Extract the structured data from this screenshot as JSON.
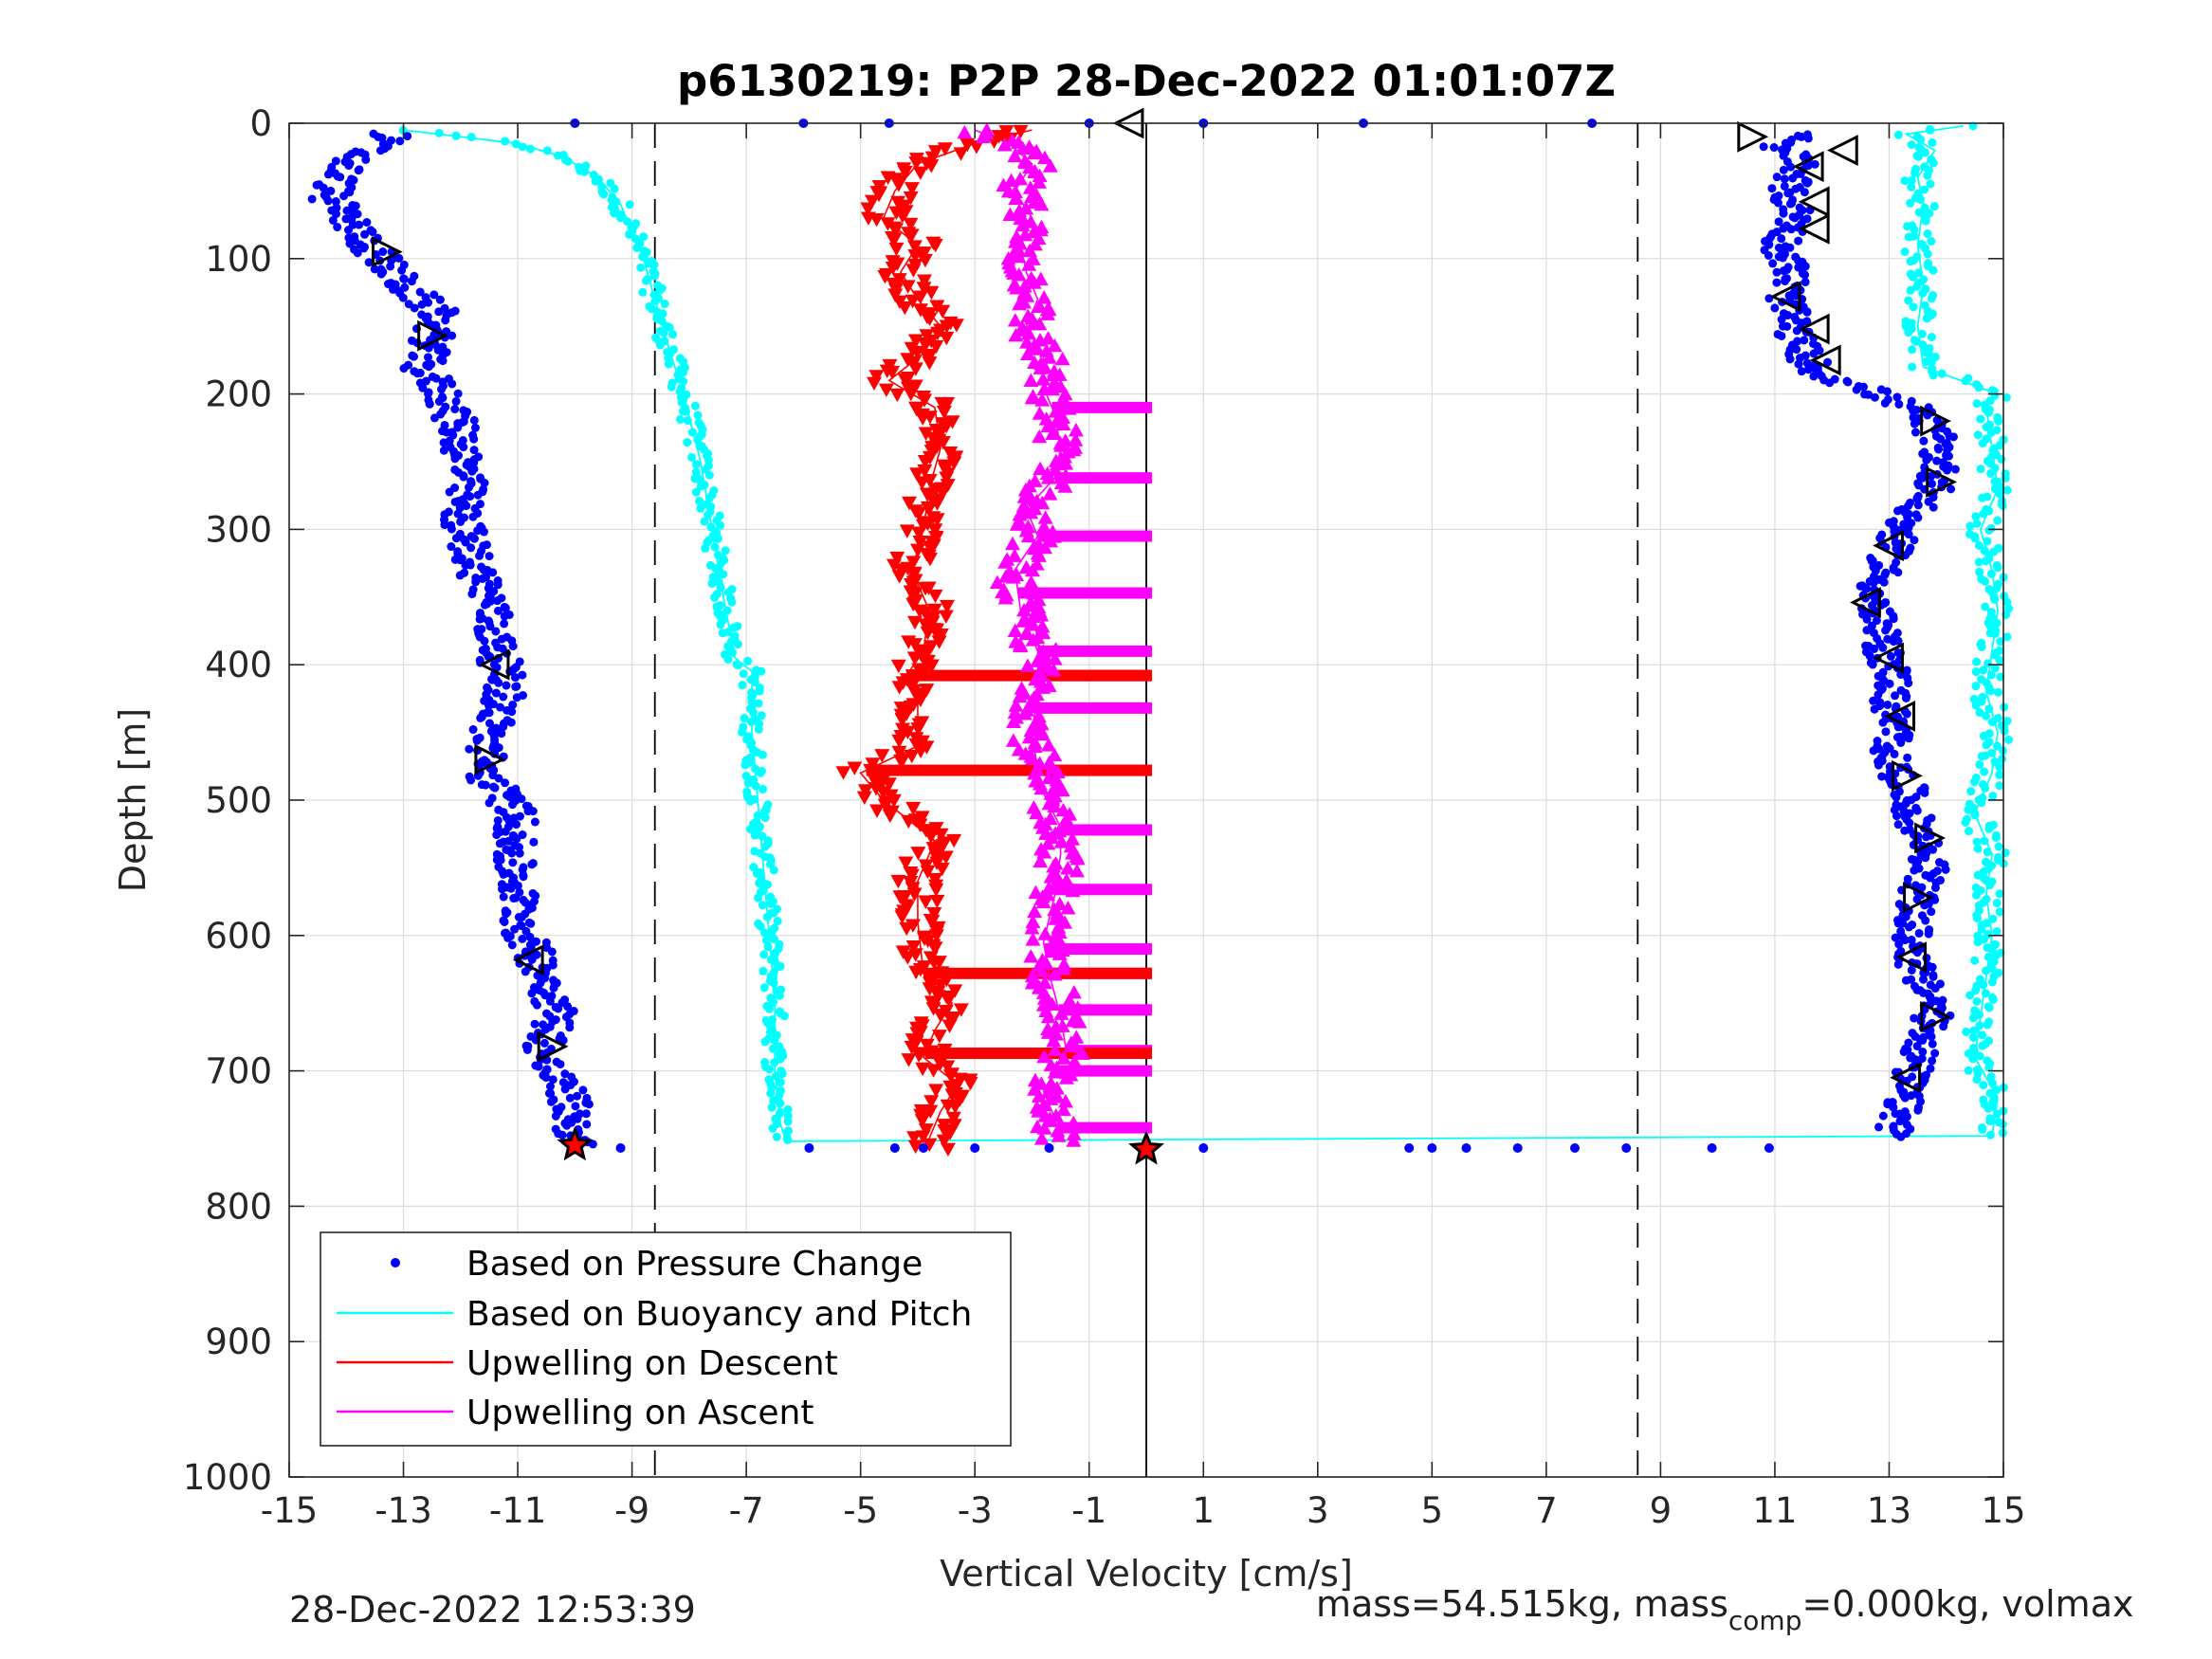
{
  "chart_data": {
    "type": "scatter",
    "title": "p6130219: P2P 28-Dec-2022 01:01:07Z",
    "xlabel": "Vertical Velocity [cm/s]",
    "ylabel": "Depth [m]",
    "xlim": [
      -15,
      15
    ],
    "ylim": [
      0,
      1000
    ],
    "y_reversed": true,
    "grid": true,
    "xticks": [
      -15,
      -13,
      -11,
      -9,
      -7,
      -5,
      -3,
      -1,
      1,
      3,
      5,
      7,
      9,
      11,
      13,
      15
    ],
    "yticks": [
      0,
      100,
      200,
      300,
      400,
      500,
      600,
      700,
      800,
      900,
      1000
    ],
    "xtick_labels": [
      "-15",
      "-13",
      "-11",
      "-9",
      "-7",
      "-5",
      "-3",
      "-1",
      "1",
      "3",
      "5",
      "7",
      "9",
      "11",
      "13",
      "15"
    ],
    "ytick_labels": [
      "0",
      "100",
      "200",
      "300",
      "400",
      "500",
      "600",
      "700",
      "800",
      "900",
      "1000"
    ],
    "reference_lines": [
      {
        "x": -8.6,
        "style": "dashed",
        "color": "#000000"
      },
      {
        "x": 0,
        "style": "solid",
        "color": "#000000"
      },
      {
        "x": 8.6,
        "style": "dashed",
        "color": "#000000"
      }
    ],
    "legend_position": "bottom-left",
    "series": [
      {
        "name": "Based on Pressure Change",
        "color": "#0000ff",
        "marker": "dot",
        "descent": {
          "depth": [
            8,
            30,
            55,
            80,
            100,
            120,
            140,
            160,
            180,
            200,
            230,
            260,
            290,
            320,
            350,
            380,
            400,
            420,
            450,
            480,
            510,
            540,
            570,
            600,
            630,
            660,
            690,
            720,
            745,
            755
          ],
          "velocity": [
            -13.2,
            -14.0,
            -14.3,
            -13.8,
            -13.4,
            -13.0,
            -12.4,
            -12.5,
            -12.7,
            -12.3,
            -12.0,
            -11.9,
            -12.0,
            -11.8,
            -11.5,
            -11.4,
            -11.3,
            -11.2,
            -11.5,
            -11.6,
            -11.0,
            -11.1,
            -11.0,
            -10.9,
            -10.5,
            -10.3,
            -10.6,
            -10.1,
            -10.0,
            -10.0
          ]
        },
        "ascent": {
          "depth": [
            748,
            730,
            710,
            690,
            670,
            650,
            630,
            610,
            590,
            570,
            550,
            530,
            510,
            490,
            470,
            450,
            430,
            410,
            390,
            370,
            350,
            330,
            310,
            290,
            270,
            250,
            230,
            210,
            200,
            185,
            170,
            150,
            130,
            110,
            90,
            70,
            50,
            30,
            15,
            8
          ],
          "velocity": [
            13.1,
            13.2,
            13.3,
            13.5,
            13.7,
            13.8,
            13.5,
            13.4,
            13.4,
            13.5,
            13.7,
            13.6,
            13.4,
            13.3,
            13.0,
            13.1,
            13.0,
            13.1,
            12.9,
            12.8,
            12.7,
            12.9,
            13.1,
            13.3,
            13.8,
            13.9,
            13.8,
            13.4,
            12.8,
            11.8,
            11.5,
            11.3,
            11.2,
            11.3,
            11.1,
            11.4,
            11.2,
            11.5,
            11.0,
            11.6
          ]
        },
        "surface_points": {
          "depth": [
            0,
            0,
            0,
            0,
            0,
            0,
            0,
            757,
            757,
            757,
            757,
            757,
            757,
            757,
            757,
            757,
            757,
            757,
            757,
            757,
            757,
            757
          ],
          "velocity": [
            -10.0,
            -6.0,
            -4.5,
            -1.0,
            1.0,
            3.8,
            7.8,
            -9.2,
            -5.9,
            -4.4,
            -3.9,
            -3.0,
            -1.7,
            1.0,
            4.6,
            5.0,
            5.6,
            6.5,
            7.5,
            8.4,
            9.9,
            10.9
          ]
        }
      },
      {
        "name": "Based on Buoyancy and Pitch",
        "color": "#00ffff",
        "marker": "dot",
        "line": true,
        "descent": {
          "depth": [
            5,
            15,
            25,
            40,
            60,
            80,
            100,
            130,
            160,
            200,
            250,
            300,
            350,
            395,
            405,
            450,
            500,
            550,
            600,
            650,
            700,
            740,
            752
          ],
          "velocity": [
            -13.0,
            -11.0,
            -10.2,
            -9.6,
            -9.2,
            -9.0,
            -8.8,
            -8.6,
            -8.4,
            -8.1,
            -7.8,
            -7.6,
            -7.4,
            -7.2,
            -6.9,
            -6.9,
            -6.8,
            -6.7,
            -6.6,
            -6.5,
            -6.5,
            -6.4,
            -6.3
          ]
        },
        "ascent": {
          "depth": [
            748,
            720,
            690,
            660,
            630,
            600,
            570,
            540,
            510,
            480,
            450,
            420,
            390,
            360,
            330,
            300,
            270,
            240,
            210,
            200,
            180,
            150,
            120,
            90,
            60,
            40,
            20,
            8,
            2
          ],
          "velocity": [
            14.8,
            14.9,
            14.5,
            14.6,
            14.7,
            14.8,
            14.7,
            14.8,
            14.5,
            14.8,
            14.9,
            14.7,
            14.8,
            14.9,
            14.8,
            14.6,
            14.9,
            14.8,
            14.7,
            14.9,
            13.6,
            13.5,
            13.6,
            13.5,
            13.6,
            13.5,
            13.8,
            13.3,
            14.3
          ]
        }
      },
      {
        "name": "Upwelling on Descent",
        "color": "#ff0000",
        "marker": "triangle-down",
        "depth": [
          5,
          15,
          30,
          50,
          70,
          90,
          110,
          130,
          150,
          170,
          190,
          210,
          240,
          270,
          300,
          330,
          360,
          390,
          408,
          430,
          460,
          480,
          500,
          530,
          560,
          590,
          628,
          650,
          670,
          690,
          710,
          730,
          750,
          757
        ],
        "velocity": [
          -2.0,
          -3.0,
          -4.0,
          -4.4,
          -4.6,
          -4.0,
          -4.3,
          -4.0,
          -3.6,
          -3.9,
          -4.5,
          -3.7,
          -3.6,
          -3.8,
          -3.9,
          -4.1,
          -3.8,
          -3.9,
          -4.2,
          -4.0,
          -4.0,
          -5.0,
          -4.6,
          -3.7,
          -4.0,
          -4.0,
          -3.9,
          -3.4,
          -3.7,
          -3.9,
          -3.3,
          -3.6,
          -3.8,
          -3.8
        ]
      },
      {
        "name": "Upwelling on Ascent",
        "color": "#ff00ff",
        "marker": "triangle-up",
        "depth": [
          752,
          735,
          715,
          700,
          685,
          660,
          628,
          605,
          570,
          540,
          520,
          495,
          478,
          450,
          420,
          408,
          390,
          360,
          330,
          305,
          285,
          262,
          240,
          215,
          195,
          170,
          150,
          130,
          110,
          90,
          70,
          50,
          30,
          15,
          5
        ],
        "velocity": [
          -1.5,
          -1.6,
          -1.8,
          -1.6,
          -1.4,
          -1.5,
          -1.7,
          -1.8,
          -1.6,
          -1.5,
          -1.5,
          -1.8,
          -1.9,
          -2.0,
          -1.9,
          -1.9,
          -1.9,
          -2.2,
          -2.3,
          -1.9,
          -2.1,
          -1.6,
          -1.5,
          -1.6,
          -1.8,
          -1.8,
          -2.1,
          -1.9,
          -2.1,
          -2.2,
          -2.0,
          -2.3,
          -2.0,
          -2.4,
          -3.0
        ]
      }
    ],
    "horizontal_bars": [
      {
        "series": "Upwelling on Ascent",
        "depths": [
          210,
          262,
          305,
          347,
          390,
          408,
          432,
          478,
          522,
          566,
          610,
          628,
          655,
          685,
          700,
          742
        ],
        "x_end": 0.1
      },
      {
        "series": "Upwelling on Descent",
        "depths": [
          408,
          478,
          628,
          687
        ],
        "x_end": 0.1
      }
    ],
    "markers_black": {
      "descent": {
        "depth": [
          95,
          157,
          400,
          470,
          618,
          682
        ],
        "velocity": [
          -13.3,
          -12.5,
          -11.4,
          -11.5,
          -10.8,
          -10.4
        ],
        "shape": [
          "triangle-right",
          "triangle-right",
          "triangle-left",
          "triangle-right",
          "triangle-left",
          "triangle-right"
        ]
      },
      "ascent": {
        "depth": [
          10,
          20,
          32,
          58,
          78,
          128,
          152,
          175,
          220,
          265,
          312,
          354,
          395,
          438,
          482,
          528,
          572,
          616,
          660,
          705
        ],
        "velocity": [
          10.6,
          12.2,
          11.6,
          11.7,
          11.7,
          11.2,
          11.7,
          11.9,
          13.8,
          13.9,
          13.0,
          12.6,
          13.0,
          13.2,
          13.3,
          13.7,
          13.5,
          13.4,
          13.8,
          13.3
        ],
        "shape": [
          "triangle-right",
          "triangle-left",
          "triangle-left",
          "triangle-left",
          "triangle-left",
          "triangle-left",
          "triangle-left",
          "triangle-left",
          "triangle-right",
          "triangle-right",
          "triangle-left",
          "triangle-left",
          "triangle-left",
          "triangle-left",
          "triangle-right",
          "triangle-right",
          "triangle-right",
          "triangle-left",
          "triangle-right",
          "triangle-left"
        ]
      },
      "surface": {
        "depth": 0,
        "velocity": -0.3
      },
      "bottom_stars": {
        "depth": [
          755,
          758
        ],
        "velocity": [
          -10.0,
          0.0
        ]
      }
    }
  },
  "footer": {
    "timestamp": "28-Dec-2022 12:53:39",
    "mass_text_a": "mass=54.515kg, mass",
    "mass_text_sub": "comp",
    "mass_text_b": "=0.000kg, volmax"
  }
}
